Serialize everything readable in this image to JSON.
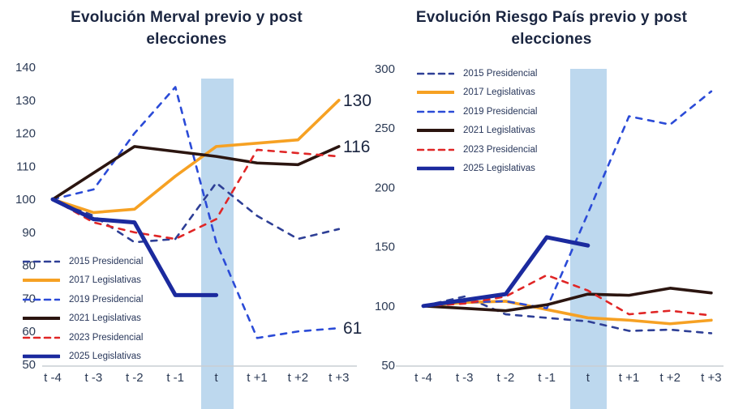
{
  "chart_data": [
    {
      "type": "line",
      "title_line1": "Evolución Merval previo y post",
      "title_line2": "elecciones",
      "ylim": [
        50,
        140
      ],
      "yticks": [
        140,
        130,
        120,
        110,
        100,
        90,
        80,
        70,
        60,
        50
      ],
      "x_labels": [
        "t -4",
        "t -3",
        "t -2",
        "t -1",
        "t",
        "t +1",
        "t +2",
        "t +3"
      ],
      "highlight_band_x": "t",
      "legend_position": "bottom-left-inside",
      "grid": false,
      "series": [
        {
          "name": "2015 Presidencial",
          "color": "#2e3f96",
          "dash": true,
          "thick": false,
          "values": [
            100,
            95,
            87,
            88,
            105,
            95,
            88,
            91
          ],
          "end_label": ""
        },
        {
          "name": "2017 Legislativas",
          "color": "#f6a123",
          "dash": false,
          "thick": false,
          "values": [
            100,
            96,
            97,
            107,
            116,
            117,
            118,
            130
          ],
          "end_label": "130"
        },
        {
          "name": "2019 Presidencial",
          "color": "#2b4bd7",
          "dash": true,
          "thick": false,
          "values": [
            100,
            103,
            120,
            134,
            87,
            58,
            60,
            61
          ],
          "end_label": "61"
        },
        {
          "name": "2021 Legislativas",
          "color": "#2b1510",
          "dash": false,
          "thick": false,
          "values": [
            100,
            108,
            116,
            114.5,
            113,
            111,
            110.5,
            116
          ],
          "end_label": "116"
        },
        {
          "name": "2023 Presidencial",
          "color": "#e02626",
          "dash": true,
          "thick": false,
          "values": [
            100,
            93,
            90,
            88,
            94,
            115,
            114,
            113
          ],
          "end_label": ""
        },
        {
          "name": "2025 Legislativas",
          "color": "#1b2a9e",
          "dash": false,
          "thick": true,
          "values": [
            100,
            94,
            93,
            71,
            71,
            null,
            null,
            null
          ],
          "end_label": ""
        }
      ]
    },
    {
      "type": "line",
      "title_line1": "Evolución Riesgo País previo y post",
      "title_line2": "elecciones",
      "ylim": [
        50,
        300
      ],
      "yticks": [
        300,
        250,
        200,
        150,
        100,
        50
      ],
      "x_labels": [
        "t -4",
        "t -3",
        "t -2",
        "t -1",
        "t",
        "t +1",
        "t +2",
        "t +3"
      ],
      "highlight_band_x": "t",
      "legend_position": "top-left-inside",
      "grid": false,
      "series": [
        {
          "name": "2015 Presidencial",
          "color": "#2e3f96",
          "dash": true,
          "thick": false,
          "values": [
            100,
            108,
            93,
            90,
            87,
            79,
            80,
            77
          ],
          "end_label": ""
        },
        {
          "name": "2017 Legislativas",
          "color": "#f6a123",
          "dash": false,
          "thick": false,
          "values": [
            100,
            103,
            104,
            97,
            90,
            88,
            85,
            88
          ],
          "end_label": ""
        },
        {
          "name": "2019 Presidencial",
          "color": "#2b4bd7",
          "dash": true,
          "thick": false,
          "values": [
            100,
            103,
            104,
            98,
            178,
            260,
            253,
            281
          ],
          "end_label": ""
        },
        {
          "name": "2021 Legislativas",
          "color": "#2b1510",
          "dash": false,
          "thick": false,
          "values": [
            100,
            98,
            96,
            101,
            110,
            109,
            115,
            111
          ],
          "end_label": ""
        },
        {
          "name": "2023 Presidencial",
          "color": "#e02626",
          "dash": true,
          "thick": false,
          "values": [
            100,
            102,
            108,
            126,
            113,
            93,
            96,
            92
          ],
          "end_label": ""
        },
        {
          "name": "2025 Legislativas",
          "color": "#1b2a9e",
          "dash": false,
          "thick": true,
          "values": [
            100,
            105,
            110,
            158,
            151,
            null,
            null,
            null
          ],
          "end_label": ""
        }
      ]
    }
  ],
  "style": {
    "band_color": "#bdd8ee",
    "axis_color": "#c9cdd4",
    "tick_text_color": "#2b3a55",
    "title_color": "#1a2540"
  }
}
